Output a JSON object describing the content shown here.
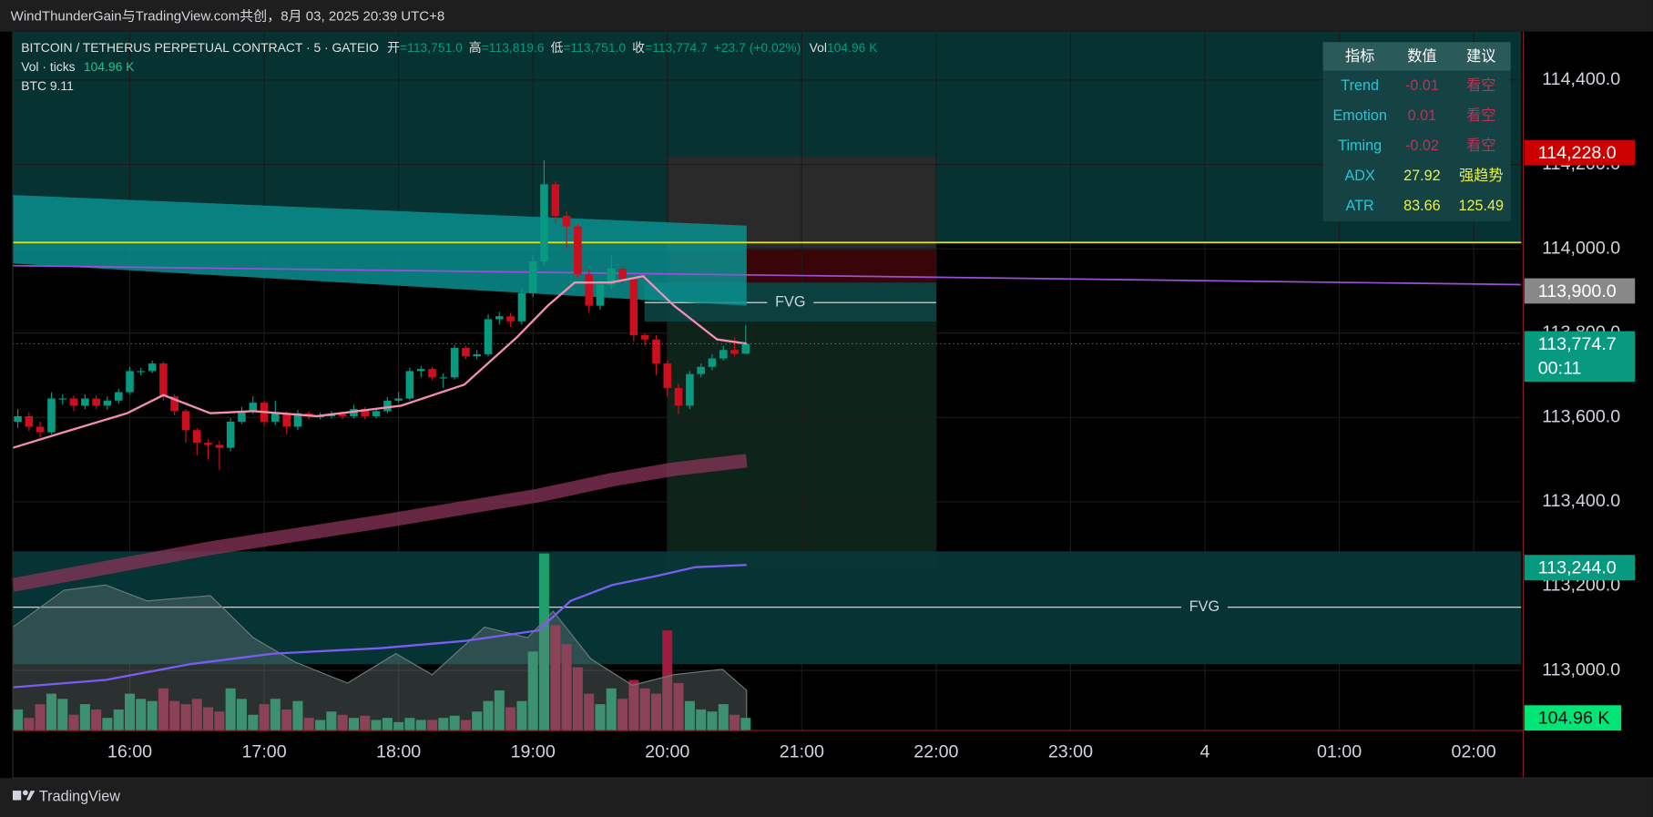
{
  "header": {
    "watermark": "WindThunderGain与TradingView.com共创，8月 03, 2025 20:39 UTC+8",
    "footer": "TradingView"
  },
  "chart_data": {
    "type": "candlestick",
    "title": "BITCOIN / TETHERUS PERPETUAL CONTRACT · 5 · GATEIO",
    "ohlc_legend": [
      {
        "label": "开",
        "value": "=113,751.0"
      },
      {
        "label": "高",
        "value": "=113,819.6"
      },
      {
        "label": "低",
        "value": "=113,751.0"
      },
      {
        "label": "收",
        "value": "=113,774.7"
      }
    ],
    "change": "+23.7 (+0.02%)",
    "vol_legend": {
      "label": "Vol",
      "value": "104.96 K"
    },
    "indicators": [
      {
        "name": "Vol · ticks",
        "value": "104.96 K"
      },
      {
        "name": "BTC 9.11"
      }
    ],
    "xlim": [
      15.129,
      26.353
    ],
    "xticks": [
      {
        "value": 16,
        "label": "16:00"
      },
      {
        "value": 17,
        "label": "17:00"
      },
      {
        "value": 18,
        "label": "18:00"
      },
      {
        "value": 19,
        "label": "19:00"
      },
      {
        "value": 20,
        "label": "20:00"
      },
      {
        "value": 21,
        "label": "21:00"
      },
      {
        "value": 22,
        "label": "22:00"
      },
      {
        "value": 23,
        "label": "23:00"
      },
      {
        "value": 24,
        "label": "4"
      },
      {
        "value": 25,
        "label": "01:00"
      },
      {
        "value": 26,
        "label": "02:00"
      }
    ],
    "ylim": [
      112857.5,
      114515
    ],
    "yticks": [
      {
        "value": 113000,
        "label": "113,000.0"
      },
      {
        "value": 113200,
        "label": "113,200.0"
      },
      {
        "value": 113400,
        "label": "113,400.0"
      },
      {
        "value": 113600,
        "label": "113,600.0"
      },
      {
        "value": 113800,
        "label": "113,800.0"
      },
      {
        "value": 114000,
        "label": "114,000.0"
      },
      {
        "value": 114200,
        "label": "114,200.0"
      },
      {
        "value": 114400,
        "label": "114,400.0"
      }
    ],
    "grid": true,
    "up_color": "#089981",
    "down_color": "#cc0f1f",
    "x": [
      15.167,
      15.25,
      15.333,
      15.417,
      15.5,
      15.583,
      15.667,
      15.75,
      15.833,
      15.917,
      16,
      16.083,
      16.167,
      16.25,
      16.333,
      16.417,
      16.5,
      16.583,
      16.667,
      16.75,
      16.833,
      16.917,
      17,
      17.083,
      17.167,
      17.25,
      17.333,
      17.417,
      17.5,
      17.583,
      17.667,
      17.75,
      17.833,
      17.917,
      18,
      18.083,
      18.167,
      18.25,
      18.333,
      18.417,
      18.5,
      18.583,
      18.667,
      18.75,
      18.833,
      18.917,
      19,
      19.083,
      19.167,
      19.25,
      19.333,
      19.417,
      19.5,
      19.583,
      19.667,
      19.75,
      19.833,
      19.917,
      20,
      20.083,
      20.167,
      20.25,
      20.333,
      20.417,
      20.5,
      20.583
    ],
    "ohlc": {
      "open": [
        113590,
        113603,
        113578,
        113565,
        113645,
        113645,
        113628,
        113645,
        113628,
        113640,
        113660,
        113710,
        113710,
        113728,
        113650,
        113615,
        113570,
        113540,
        113535,
        113528,
        113590,
        113615,
        113635,
        113590,
        113610,
        113578,
        113610,
        113603,
        113603,
        113608,
        113603,
        113620,
        113603,
        113615,
        113640,
        113645,
        113710,
        113715,
        113695,
        113695,
        113765,
        113745,
        113750,
        113833,
        113840,
        113828,
        113895,
        113970,
        114153,
        114078,
        114053,
        113940,
        113865,
        113915,
        113953,
        113928,
        113795,
        113785,
        113728,
        113670,
        113628,
        113703,
        113720,
        113740,
        113760,
        113751
      ],
      "high": [
        113620,
        113612,
        113590,
        113660,
        113655,
        113652,
        113655,
        113652,
        113650,
        113668,
        113720,
        113718,
        113735,
        113732,
        113655,
        113620,
        113575,
        113548,
        113545,
        113598,
        113625,
        113650,
        113640,
        113640,
        113615,
        113618,
        113615,
        113612,
        113615,
        113612,
        113630,
        113625,
        113622,
        113648,
        113660,
        113718,
        113722,
        113720,
        113705,
        113772,
        113770,
        113760,
        113845,
        113850,
        113848,
        113905,
        113985,
        114210,
        114160,
        114090,
        114060,
        113950,
        113925,
        113985,
        113960,
        113935,
        113800,
        113795,
        113735,
        113680,
        113710,
        113728,
        113750,
        113770,
        113790,
        113819.6
      ],
      "low": [
        113575,
        113568,
        113552,
        113560,
        113630,
        113615,
        113620,
        113620,
        113618,
        113632,
        113655,
        113700,
        113705,
        113640,
        113605,
        113540,
        113510,
        113500,
        113475,
        113520,
        113585,
        113608,
        113580,
        113582,
        113560,
        113570,
        113595,
        113595,
        113598,
        113596,
        113598,
        113596,
        113598,
        113610,
        113635,
        113640,
        113695,
        113688,
        113670,
        113690,
        113738,
        113738,
        113745,
        113820,
        113815,
        113820,
        113885,
        113960,
        114060,
        114000,
        113930,
        113850,
        113855,
        113905,
        113915,
        113780,
        113770,
        113700,
        113650,
        113608,
        113620,
        113695,
        113712,
        113735,
        113745,
        113751
      ],
      "close": [
        113603,
        113578,
        113565,
        113645,
        113645,
        113628,
        113645,
        113628,
        113640,
        113660,
        113710,
        113710,
        113728,
        113650,
        113615,
        113570,
        113540,
        113535,
        113528,
        113590,
        113615,
        113635,
        113590,
        113610,
        113578,
        113610,
        113603,
        113603,
        113608,
        113603,
        113620,
        113603,
        113615,
        113640,
        113645,
        113710,
        113715,
        113695,
        113695,
        113765,
        113745,
        113750,
        113833,
        113840,
        113828,
        113895,
        113970,
        114153,
        114078,
        114053,
        113940,
        113865,
        113915,
        113953,
        113928,
        113795,
        113785,
        113728,
        113670,
        113628,
        113703,
        113720,
        113740,
        113760,
        113751,
        113774.7
      ]
    },
    "volume": {
      "ylim": [
        0,
        5800
      ],
      "up_color": "#1e9e6a",
      "down_color": "#a01c3e",
      "values": [
        175,
        105,
        219,
        306,
        263,
        131,
        219,
        175,
        105,
        175,
        306,
        263,
        245,
        350,
        245,
        219,
        263,
        193,
        158,
        350,
        263,
        131,
        219,
        263,
        175,
        245,
        105,
        88,
        158,
        131,
        105,
        123,
        88,
        105,
        70,
        105,
        88,
        88,
        105,
        123,
        88,
        158,
        245,
        333,
        193,
        245,
        656,
        1470,
        875,
        718,
        525,
        306,
        219,
        350,
        263,
        420,
        350,
        306,
        831,
        394,
        245,
        175,
        158,
        219,
        131,
        104.96
      ],
      "area": {
        "color": "#6b7b7b",
        "x": [
          15.13,
          15.51,
          15.82,
          16.13,
          16.6,
          16.92,
          17.23,
          17.62,
          17.98,
          18.25,
          18.64,
          18.96,
          19.15,
          19.43,
          19.74,
          20.05,
          20.41,
          20.59
        ],
        "values": [
          858,
          1164,
          1208,
          1076,
          1120,
          770,
          569,
          394,
          639,
          464,
          858,
          770,
          989,
          595,
          376,
          464,
          508,
          333
        ]
      },
      "line": {
        "color": "#7b5cf0",
        "x": [
          15.13,
          15.82,
          16.45,
          17.07,
          17.86,
          18.49,
          19.04,
          19.28,
          19.59,
          19.9,
          20.21,
          20.59
        ],
        "values": [
          359,
          420,
          551,
          639,
          683,
          744,
          831,
          1076,
          1208,
          1278,
          1356,
          1374
        ]
      }
    },
    "zones": [
      {
        "color": "#073232",
        "x": [
          15.129,
          26.353
        ],
        "y": [
          114515,
          114015
        ]
      },
      {
        "color": "#2a2a2a",
        "x": [
          20,
          22
        ],
        "y": [
          114220,
          113997.5
        ]
      },
      {
        "color": "#3a0508",
        "x": [
          20,
          22
        ],
        "y": [
          113997.5,
          113915
        ]
      },
      {
        "color": "#0e241b",
        "x": [
          20,
          22
        ],
        "y": [
          113915,
          113240
        ]
      }
    ],
    "fvg": [
      {
        "label": "FVG",
        "color": "#0c4444",
        "x": [
          19.83,
          22
        ],
        "y": [
          113920,
          113827.5
        ],
        "line": 113872.5
      },
      {
        "label": "FVG",
        "color": "#073838",
        "x": [
          15.129,
          26.353
        ],
        "y": [
          113282.5,
          113015
        ],
        "line": 113150
      }
    ],
    "teal_band": {
      "color": "#0a8f8f",
      "x": [
        15.13,
        20.59
      ],
      "upper": [
        114127.5,
        114055
      ],
      "lower": [
        113965,
        113865
      ]
    },
    "maroon_band": {
      "color": "#8a3458",
      "x": [
        15.13,
        16.6,
        17.86,
        19.04,
        19.59,
        20.05,
        20.59
      ],
      "values": [
        113202.5,
        113290,
        113352.5,
        113415,
        113452.5,
        113477.5,
        113497.5
      ]
    },
    "purple_line": {
      "color": "#9b4fd8",
      "x": [
        15.13,
        26.35
      ],
      "values": [
        113960,
        113915
      ]
    },
    "yellow_line": {
      "color": "#e6e600",
      "value": 114015
    },
    "ma": {
      "color": "#f48fb1",
      "x": [
        15.13,
        15.51,
        15.98,
        16.25,
        16.6,
        16.92,
        17.39,
        18.02,
        18.49,
        18.88,
        19.11,
        19.31,
        19.58,
        19.82,
        20.05,
        20.37,
        20.59
      ],
      "values": [
        113528,
        113565,
        113610,
        113653,
        113610,
        113615,
        113603,
        113628,
        113678,
        113790,
        113865,
        113920,
        113920,
        113935,
        113865,
        113785,
        113775
      ]
    },
    "price_labels": [
      {
        "value": 114228,
        "label": "114,228.0",
        "color": "#cc0000"
      },
      {
        "value": 113900,
        "label": "113,900.0",
        "color": "#888888"
      },
      {
        "value": 113774.7,
        "label": "113,774.7",
        "countdown": "00:11",
        "color": "#089981"
      },
      {
        "value": 113244,
        "label": "113,244.0",
        "color": "#089981"
      }
    ],
    "volume_label": {
      "value": 104.96,
      "label": "104.96 K",
      "color": "#00e676"
    },
    "table": {
      "header": [
        "指标",
        "数值",
        "建议"
      ],
      "rows": [
        [
          "Trend",
          "-0.01",
          "看空"
        ],
        [
          "Emotion",
          "0.01",
          "看空"
        ],
        [
          "Timing",
          "-0.02",
          "看空"
        ],
        [
          "ADX",
          "27.92",
          "强趋势"
        ],
        [
          "ATR",
          "83.66",
          "125.49"
        ]
      ],
      "name_color": "#26c6da",
      "value_colors": [
        "#b2365a",
        "#b2365a",
        "#b2365a",
        "#e8f04a",
        "#e8f04a"
      ]
    }
  }
}
